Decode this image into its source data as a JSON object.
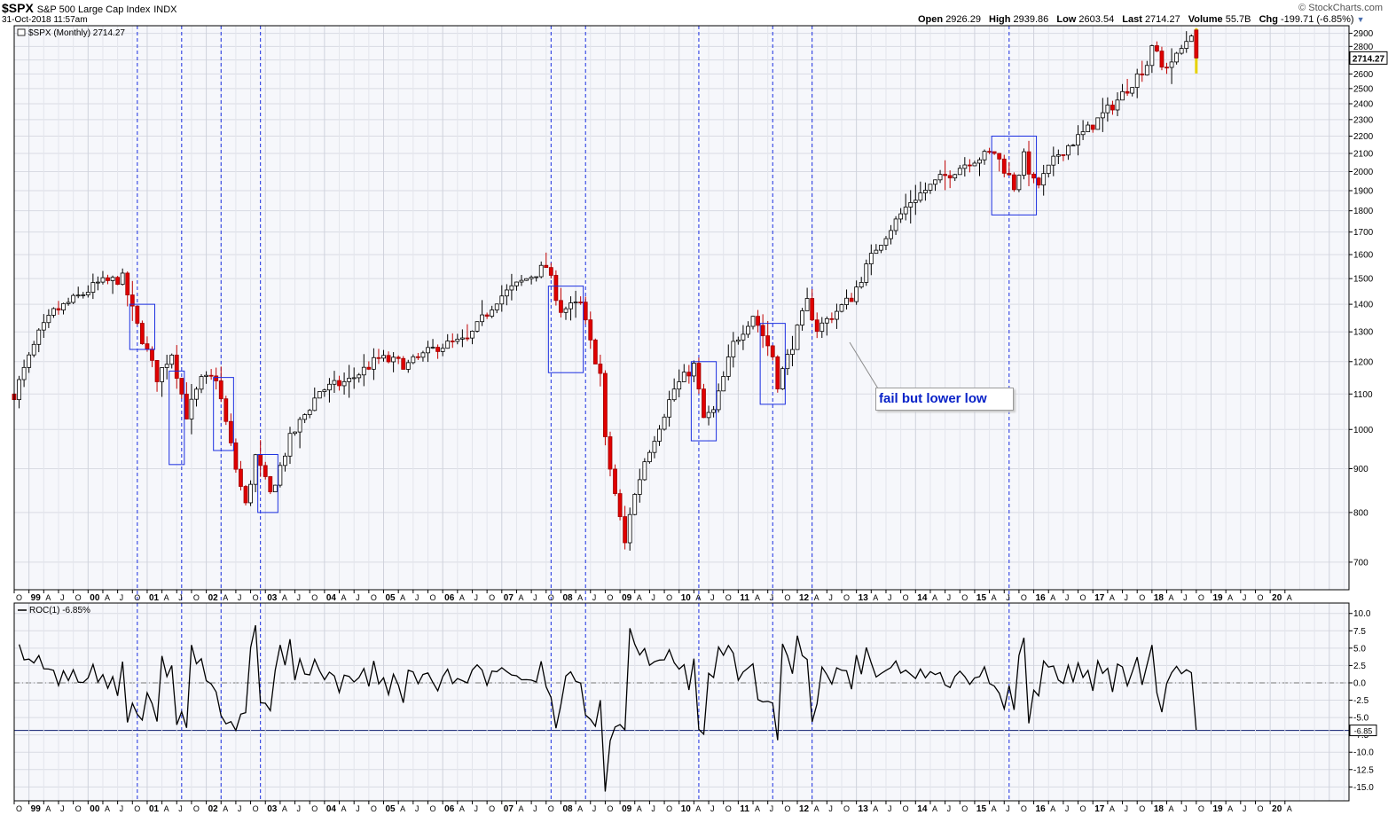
{
  "header": {
    "symbol": "$SPX",
    "name": "S&P 500 Large Cap Index",
    "exchange": "INDX",
    "datetime": "31-Oct-2018 11:57am",
    "open_label": "Open",
    "open": "2926.29",
    "high_label": "High",
    "high": "2939.86",
    "low_label": "Low",
    "low": "2603.54",
    "last_label": "Last",
    "last": "2714.27",
    "volume_label": "Volume",
    "volume": "55.7B",
    "chg_label": "Chg",
    "chg": "-199.71 (-6.85%)",
    "brand": "© StockCharts.com"
  },
  "annotation": {
    "text": "fail but lower low"
  },
  "chart_data": [
    {
      "type": "candlestick",
      "legend": "$SPX (Monthly) 2714.27",
      "last_value_tag": "2714.27",
      "y_scale": "log",
      "ylim": [
        650,
        2960
      ],
      "y_ticks": [
        700,
        800,
        900,
        1000,
        1100,
        1200,
        1300,
        1400,
        1500,
        1600,
        1700,
        1800,
        1900,
        2000,
        2100,
        2200,
        2300,
        2400,
        2500,
        2600,
        2700,
        2800,
        2900
      ],
      "x_range": [
        "1998-10",
        "2021-05"
      ],
      "x_tick_labels": [
        "O",
        "99",
        "A",
        "J",
        "O",
        "00",
        "A",
        "J",
        "O",
        "01",
        "A",
        "J",
        "O",
        "02",
        "A",
        "J",
        "O",
        "03",
        "A",
        "J",
        "O",
        "04",
        "A",
        "J",
        "O",
        "05",
        "A",
        "J",
        "O",
        "06",
        "A",
        "J",
        "O",
        "07",
        "A",
        "J",
        "O",
        "08",
        "A",
        "J",
        "O",
        "09",
        "A",
        "J",
        "O",
        "10",
        "A",
        "J",
        "O",
        "11",
        "A",
        "J",
        "O",
        "12",
        "A",
        "J",
        "O",
        "13",
        "A",
        "J",
        "O",
        "14",
        "A",
        "J",
        "O",
        "15",
        "A",
        "J",
        "O",
        "16",
        "A",
        "J",
        "O",
        "17",
        "A",
        "J",
        "O",
        "18",
        "A",
        "J",
        "O",
        "19",
        "A",
        "J",
        "O",
        "20",
        "A"
      ],
      "anchors": [
        [
          "1998-10",
          1100
        ],
        [
          "1999-03",
          1290
        ],
        [
          "1999-06",
          1370
        ],
        [
          "1999-12",
          1440
        ],
        [
          "2000-03",
          1480
        ],
        [
          "2000-08",
          1500
        ],
        [
          "2000-11",
          1320
        ],
        [
          "2001-03",
          1150
        ],
        [
          "2001-06",
          1230
        ],
        [
          "2001-09",
          1040
        ],
        [
          "2001-12",
          1140
        ],
        [
          "2002-03",
          1150
        ],
        [
          "2002-07",
          900
        ],
        [
          "2002-09",
          815
        ],
        [
          "2002-11",
          930
        ],
        [
          "2003-02",
          840
        ],
        [
          "2003-06",
          975
        ],
        [
          "2003-12",
          1110
        ],
        [
          "2004-06",
          1140
        ],
        [
          "2004-12",
          1210
        ],
        [
          "2005-06",
          1190
        ],
        [
          "2005-12",
          1250
        ],
        [
          "2006-06",
          1270
        ],
        [
          "2006-12",
          1420
        ],
        [
          "2007-06",
          1500
        ],
        [
          "2007-10",
          1550
        ],
        [
          "2008-01",
          1380
        ],
        [
          "2008-05",
          1400
        ],
        [
          "2008-07",
          1260
        ],
        [
          "2008-09",
          1160
        ],
        [
          "2008-10",
          970
        ],
        [
          "2008-11",
          900
        ],
        [
          "2009-02",
          735
        ],
        [
          "2009-03",
          800
        ],
        [
          "2009-06",
          920
        ],
        [
          "2009-12",
          1115
        ],
        [
          "2010-04",
          1187
        ],
        [
          "2010-06",
          1030
        ],
        [
          "2010-08",
          1049
        ],
        [
          "2010-12",
          1258
        ],
        [
          "2011-04",
          1363
        ],
        [
          "2011-08",
          1219
        ],
        [
          "2011-09",
          1131
        ],
        [
          "2011-12",
          1258
        ],
        [
          "2012-03",
          1408
        ],
        [
          "2012-05",
          1310
        ],
        [
          "2012-12",
          1426
        ],
        [
          "2013-05",
          1630
        ],
        [
          "2013-12",
          1848
        ],
        [
          "2014-06",
          1960
        ],
        [
          "2014-12",
          2059
        ],
        [
          "2015-05",
          2107
        ],
        [
          "2015-08",
          1972
        ],
        [
          "2015-09",
          1920
        ],
        [
          "2015-11",
          2080
        ],
        [
          "2016-01",
          1940
        ],
        [
          "2016-02",
          1932
        ],
        [
          "2016-06",
          2099
        ],
        [
          "2016-12",
          2239
        ],
        [
          "2017-06",
          2423
        ],
        [
          "2017-12",
          2673
        ],
        [
          "2018-01",
          2823
        ],
        [
          "2018-03",
          2640
        ],
        [
          "2018-06",
          2718
        ],
        [
          "2018-09",
          2913
        ],
        [
          "2018-10",
          2714
        ]
      ],
      "last_candle": {
        "date": "2018-10",
        "open": 2926.29,
        "high": 2939.86,
        "low": 2603.54,
        "close": 2714.27
      },
      "boxes": [
        {
          "from": "2000-10",
          "to": "2001-02",
          "high": 1400,
          "low": 1240
        },
        {
          "from": "2001-06",
          "to": "2001-08",
          "high": 1170,
          "low": 910
        },
        {
          "from": "2002-03",
          "to": "2002-06",
          "high": 1150,
          "low": 945
        },
        {
          "from": "2002-12",
          "to": "2003-03",
          "high": 935,
          "low": 800
        },
        {
          "from": "2007-11",
          "to": "2008-05",
          "high": 1470,
          "low": 1165
        },
        {
          "from": "2010-04",
          "to": "2010-08",
          "high": 1200,
          "low": 970
        },
        {
          "from": "2011-06",
          "to": "2011-10",
          "high": 1330,
          "low": 1070
        },
        {
          "from": "2015-05",
          "to": "2016-01",
          "high": 2200,
          "low": 1780
        }
      ]
    },
    {
      "type": "line",
      "legend": "ROC(1) -6.85%",
      "last_value_tag": "-6.85",
      "ylim": [
        -17,
        11.5
      ],
      "y_ticks": [
        -15.0,
        -12.5,
        -10.0,
        -7.5,
        -5.0,
        -2.5,
        0.0,
        2.5,
        5.0,
        7.5,
        10.0
      ],
      "zero_line": 0,
      "reference_line": -6.85,
      "last_value": -6.85
    }
  ],
  "signal_months": [
    "2000-11",
    "2001-08",
    "2002-04",
    "2002-12",
    "2007-11",
    "2008-06",
    "2010-05",
    "2011-08",
    "2012-04",
    "2015-08"
  ]
}
